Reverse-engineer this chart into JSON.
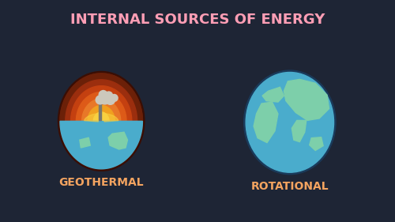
{
  "bg_color": "#1e2535",
  "title": "INTERNAL SOURCES OF ENERGY",
  "title_color": "#ff9eb5",
  "title_fontsize": 13,
  "label1": "GEOTHERMAL",
  "label2": "ROTATIONAL",
  "label_color": "#f4a460",
  "label_fontsize": 10,
  "earth_ocean_color": "#4aaccc",
  "earth_land_color": "#7dcfaa",
  "geo_layers": [
    {
      "r": 1.0,
      "color": "#6b2008"
    },
    {
      "r": 0.87,
      "color": "#9b2e0e"
    },
    {
      "r": 0.74,
      "color": "#c44010"
    },
    {
      "r": 0.61,
      "color": "#dd5a18"
    },
    {
      "r": 0.47,
      "color": "#e87828"
    },
    {
      "r": 0.33,
      "color": "#f0a020"
    },
    {
      "r": 0.19,
      "color": "#f8d040"
    }
  ],
  "smoke_color": "#ccc8bc",
  "chimney_color": "#777770",
  "geo_border_color": "#3a0e04",
  "rot_border_color": "#1a3a5a"
}
